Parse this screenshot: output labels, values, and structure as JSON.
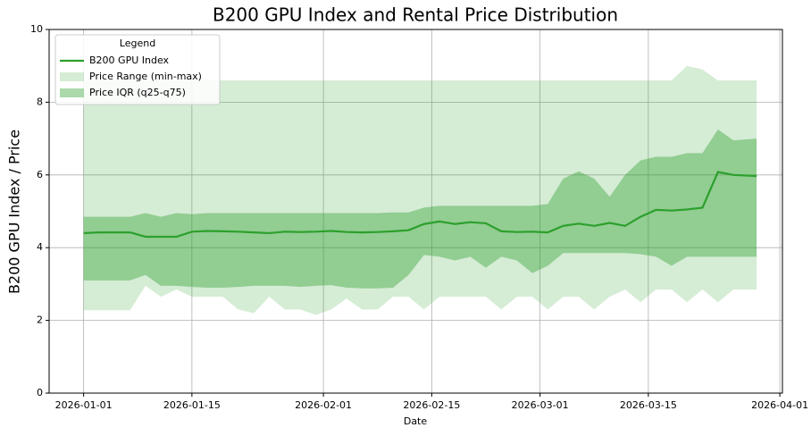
{
  "chart_data": {
    "type": "line",
    "title": "B200 GPU Index and Rental Price Distribution",
    "x_label": "Date",
    "y_label": "B200 GPU Index / Price",
    "x": [
      "2026-01-01",
      "2026-01-03",
      "2026-01-05",
      "2026-01-07",
      "2026-01-09",
      "2026-01-11",
      "2026-01-13",
      "2026-01-15",
      "2026-01-17",
      "2026-01-19",
      "2026-01-21",
      "2026-01-23",
      "2026-01-25",
      "2026-01-27",
      "2026-01-29",
      "2026-01-31",
      "2026-02-02",
      "2026-02-04",
      "2026-02-06",
      "2026-02-08",
      "2026-02-10",
      "2026-02-12",
      "2026-02-14",
      "2026-02-16",
      "2026-02-18",
      "2026-02-20",
      "2026-02-22",
      "2026-02-24",
      "2026-02-26",
      "2026-02-28",
      "2026-03-02",
      "2026-03-04",
      "2026-03-06",
      "2026-03-08",
      "2026-03-10",
      "2026-03-12",
      "2026-03-14",
      "2026-03-16",
      "2026-03-18",
      "2026-03-20",
      "2026-03-22",
      "2026-03-24",
      "2026-03-26",
      "2026-03-29"
    ],
    "series": [
      {
        "name": "B200 GPU Index",
        "color": "#2ca02c",
        "values": [
          4.4,
          4.42,
          4.42,
          4.42,
          4.3,
          4.3,
          4.3,
          4.44,
          4.46,
          4.45,
          4.44,
          4.42,
          4.4,
          4.44,
          4.43,
          4.44,
          4.46,
          4.43,
          4.42,
          4.43,
          4.45,
          4.48,
          4.65,
          4.72,
          4.65,
          4.7,
          4.67,
          4.45,
          4.43,
          4.44,
          4.42,
          4.6,
          4.66,
          4.6,
          4.68,
          4.6,
          4.85,
          5.04,
          5.02,
          5.05,
          5.1,
          6.08,
          6.0,
          5.97
        ]
      }
    ],
    "bands": [
      {
        "name": "Price Range (min-max)",
        "color": "#2ca02c",
        "opacity": 0.2,
        "lower": [
          2.28,
          2.28,
          2.28,
          2.28,
          2.95,
          2.65,
          2.85,
          2.65,
          2.65,
          2.65,
          2.3,
          2.2,
          2.65,
          2.3,
          2.3,
          2.15,
          2.3,
          2.6,
          2.3,
          2.3,
          2.65,
          2.65,
          2.3,
          2.65,
          2.65,
          2.65,
          2.65,
          2.3,
          2.65,
          2.65,
          2.3,
          2.65,
          2.65,
          2.3,
          2.65,
          2.85,
          2.5,
          2.85,
          2.85,
          2.5,
          2.85,
          2.5,
          2.85,
          2.85
        ],
        "upper": [
          8.6,
          8.6,
          8.6,
          8.6,
          8.6,
          8.6,
          8.6,
          8.6,
          8.6,
          8.6,
          8.6,
          8.6,
          8.6,
          8.6,
          8.6,
          8.6,
          8.6,
          8.6,
          8.6,
          8.6,
          8.6,
          8.6,
          8.6,
          8.6,
          8.6,
          8.6,
          8.6,
          8.6,
          8.6,
          8.6,
          8.6,
          8.6,
          8.6,
          8.6,
          8.6,
          8.6,
          8.6,
          8.6,
          8.6,
          9.0,
          8.9,
          8.6,
          8.6,
          8.6
        ]
      },
      {
        "name": "Price IQR (q25-q75)",
        "color": "#2ca02c",
        "opacity": 0.4,
        "lower": [
          3.1,
          3.1,
          3.1,
          3.1,
          3.25,
          2.95,
          2.95,
          2.92,
          2.9,
          2.9,
          2.92,
          2.95,
          2.95,
          2.95,
          2.92,
          2.95,
          2.97,
          2.9,
          2.88,
          2.88,
          2.9,
          3.25,
          3.8,
          3.75,
          3.65,
          3.75,
          3.45,
          3.75,
          3.65,
          3.3,
          3.5,
          3.85,
          3.85,
          3.85,
          3.85,
          3.85,
          3.82,
          3.75,
          3.5,
          3.75,
          3.75,
          3.75,
          3.75,
          3.75
        ],
        "upper": [
          4.85,
          4.85,
          4.85,
          4.85,
          4.95,
          4.85,
          4.95,
          4.92,
          4.95,
          4.95,
          4.95,
          4.95,
          4.95,
          4.95,
          4.95,
          4.95,
          4.95,
          4.95,
          4.95,
          4.95,
          4.97,
          4.97,
          5.1,
          5.15,
          5.15,
          5.15,
          5.15,
          5.15,
          5.15,
          5.15,
          5.2,
          5.9,
          6.1,
          5.9,
          5.4,
          6.0,
          6.4,
          6.5,
          6.5,
          6.6,
          6.6,
          7.25,
          6.95,
          7.0
        ]
      }
    ],
    "xlim": [
      "2025-12-27T13:00",
      "2026-04-01T08:00"
    ],
    "xticks": [
      "2026-01-01",
      "2026-01-15",
      "2026-02-01",
      "2026-02-15",
      "2026-03-01",
      "2026-03-15",
      "2026-04-01"
    ],
    "ylim": [
      0,
      10
    ],
    "yticks": [
      0,
      2,
      4,
      6,
      8,
      10
    ],
    "grid": true,
    "legend_title": "Legend",
    "legend_position": "upper-left"
  }
}
